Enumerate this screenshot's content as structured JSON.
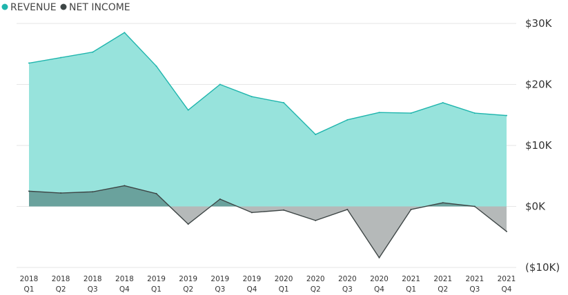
{
  "chart_data": {
    "type": "area",
    "categories": [
      [
        "2018",
        "Q1"
      ],
      [
        "2018",
        "Q2"
      ],
      [
        "2018",
        "Q3"
      ],
      [
        "2018",
        "Q4"
      ],
      [
        "2019",
        "Q1"
      ],
      [
        "2019",
        "Q2"
      ],
      [
        "2019",
        "Q3"
      ],
      [
        "2019",
        "Q4"
      ],
      [
        "2020",
        "Q1"
      ],
      [
        "2020",
        "Q2"
      ],
      [
        "2020",
        "Q3"
      ],
      [
        "2020",
        "Q4"
      ],
      [
        "2021",
        "Q1"
      ],
      [
        "2021",
        "Q2"
      ],
      [
        "2021",
        "Q3"
      ],
      [
        "2021",
        "Q4"
      ]
    ],
    "series": [
      {
        "name": "REVENUE",
        "color": "#1fb5ad",
        "fill": "#97e3dc",
        "values": [
          23500,
          24400,
          25300,
          28500,
          23000,
          15800,
          20000,
          18000,
          17000,
          11800,
          14200,
          15400,
          15300,
          17000,
          15300,
          14900
        ]
      },
      {
        "name": "NET INCOME",
        "color": "#3d4545",
        "fill_positive": "#6aa29d",
        "fill_negative": "#b5b9b9",
        "values": [
          2500,
          2200,
          2400,
          3400,
          2100,
          -2900,
          1200,
          -1000,
          -600,
          -2300,
          -500,
          -8400,
          -500,
          600,
          0,
          -4100
        ]
      }
    ],
    "y_axis": {
      "position": "right",
      "min": -10000,
      "max": 30000,
      "ticks": [
        {
          "value": 30000,
          "label": "$30K"
        },
        {
          "value": 20000,
          "label": "$20K"
        },
        {
          "value": 10000,
          "label": "$10K"
        },
        {
          "value": 0,
          "label": "$0K"
        },
        {
          "value": -10000,
          "label": "($10K)"
        }
      ]
    },
    "grid": true,
    "legend": "top-left"
  }
}
